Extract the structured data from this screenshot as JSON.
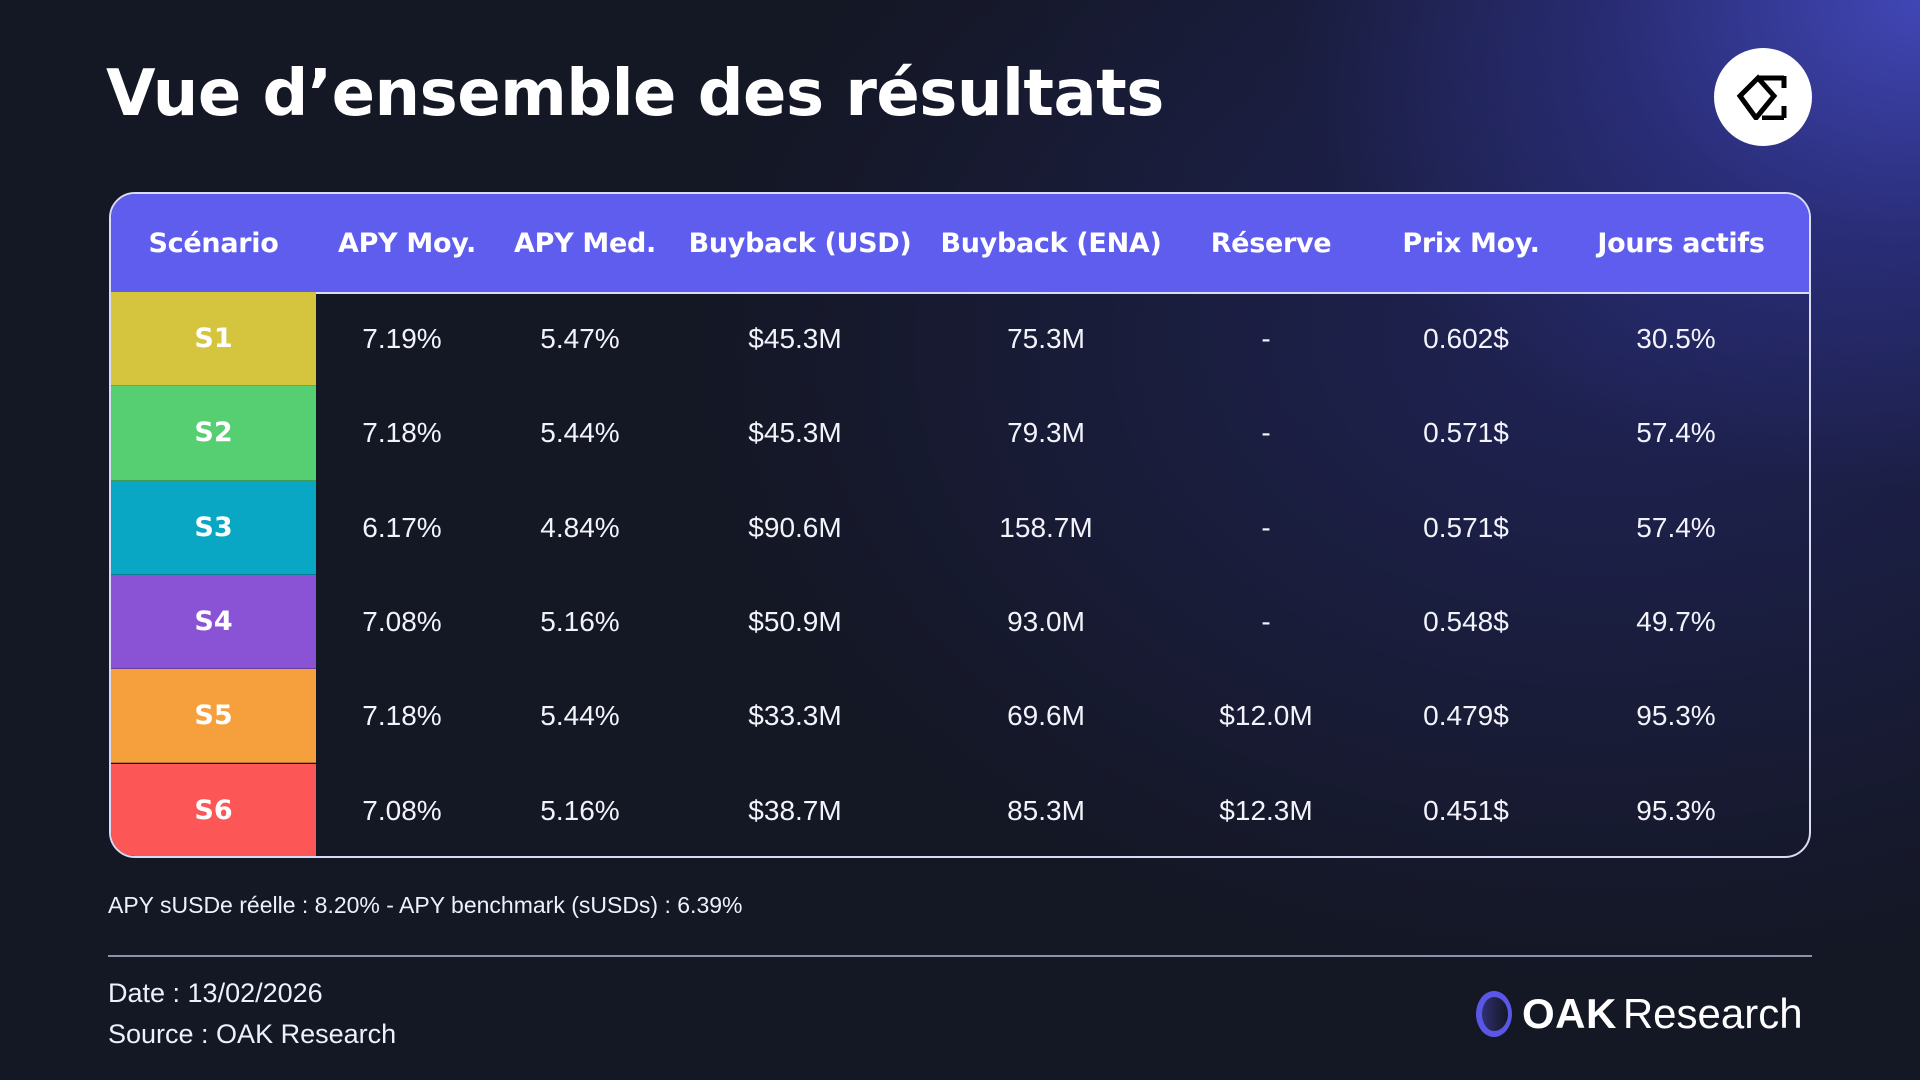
{
  "title": "Vue d’ensemble des résultats",
  "brand_icon": "ethena-logo-icon",
  "table": {
    "header_color": "#5f5ded",
    "columns": [
      "Scénario",
      "APY Moy.",
      "APY Med.",
      "Buyback (USD)",
      "Buyback (ENA)",
      "Réserve",
      "Prix Moy.",
      "Jours actifs"
    ],
    "rows": [
      {
        "scenario": "S1",
        "color": "#d4c43e",
        "apy_moy": "7.19%",
        "apy_med": "5.47%",
        "buyback_usd": "$45.3M",
        "buyback_ena": "75.3M",
        "reserve": "-",
        "prix_moy": "0.602$",
        "jours_actifs": "30.5%"
      },
      {
        "scenario": "S2",
        "color": "#56ce72",
        "apy_moy": "7.18%",
        "apy_med": "5.44%",
        "buyback_usd": "$45.3M",
        "buyback_ena": "79.3M",
        "reserve": "-",
        "prix_moy": "0.571$",
        "jours_actifs": "57.4%"
      },
      {
        "scenario": "S3",
        "color": "#0aa7c4",
        "apy_moy": "6.17%",
        "apy_med": "4.84%",
        "buyback_usd": "$90.6M",
        "buyback_ena": "158.7M",
        "reserve": "-",
        "prix_moy": "0.571$",
        "jours_actifs": "57.4%"
      },
      {
        "scenario": "S4",
        "color": "#8a52d4",
        "apy_moy": "7.08%",
        "apy_med": "5.16%",
        "buyback_usd": "$50.9M",
        "buyback_ena": "93.0M",
        "reserve": "-",
        "prix_moy": "0.548$",
        "jours_actifs": "49.7%"
      },
      {
        "scenario": "S5",
        "color": "#f5a03c",
        "apy_moy": "7.18%",
        "apy_med": "5.44%",
        "buyback_usd": "$33.3M",
        "buyback_ena": "69.6M",
        "reserve": "$12.0M",
        "prix_moy": "0.479$",
        "jours_actifs": "95.3%"
      },
      {
        "scenario": "S6",
        "color": "#fd5656",
        "apy_moy": "7.08%",
        "apy_med": "5.16%",
        "buyback_usd": "$38.7M",
        "buyback_ena": "85.3M",
        "reserve": "$12.3M",
        "prix_moy": "0.451$",
        "jours_actifs": "95.3%"
      }
    ]
  },
  "note": "APY sUSDe réelle : 8.20% - APY benchmark (sUSDs) : 6.39%",
  "footer": {
    "date": "Date : 13/02/2026",
    "source": "Source : OAK Research",
    "logo_bold": "OAK",
    "logo_light": "Research"
  }
}
